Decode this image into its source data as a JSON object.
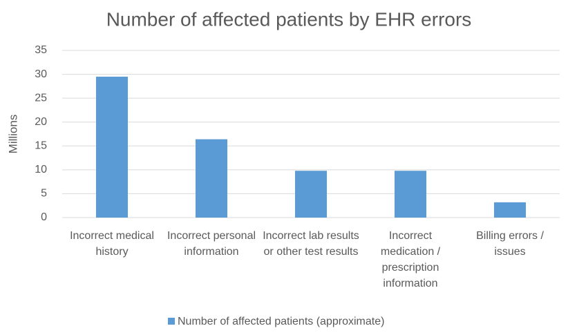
{
  "chart_data": {
    "type": "bar",
    "title": "Number of affected patients by EHR errors",
    "y_label": "Millions",
    "categories": [
      "Incorrect medical history",
      "Incorrect personal information",
      "Incorrect lab results or other test results",
      "Incorrect medication / prescription information",
      "Billing errors / issues"
    ],
    "series": [
      {
        "name": "Number of affected patients (approximate)",
        "color": "#5b9bd5",
        "values": [
          29.5,
          16.4,
          9.8,
          9.8,
          3.2
        ]
      }
    ],
    "ylim": [
      0,
      35
    ],
    "yticks": [
      0,
      5,
      10,
      15,
      20,
      25,
      30,
      35
    ],
    "grid": true,
    "legend": "bottom"
  }
}
